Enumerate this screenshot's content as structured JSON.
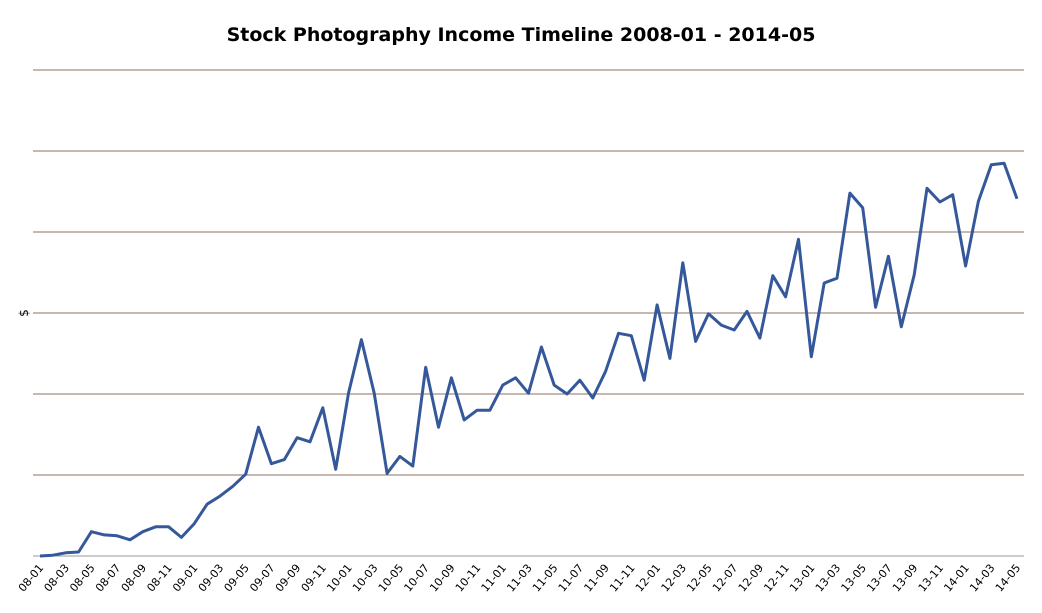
{
  "chart_data": {
    "type": "line",
    "title": "Stock Photography Income Timeline 2008-01 - 2014-05",
    "y_label": "$",
    "categories": [
      "08-01",
      null,
      "08-03",
      null,
      "08-05",
      null,
      "08-07",
      null,
      "08-09",
      null,
      "08-11",
      null,
      "09-01",
      null,
      "09-03",
      null,
      "09-05",
      null,
      "09-07",
      null,
      "09-09",
      null,
      "09-11",
      null,
      "10-01",
      null,
      "10-03",
      null,
      "10-05",
      null,
      "10-07",
      null,
      "10-09",
      null,
      "10-11",
      null,
      "11-01",
      null,
      "11-03",
      null,
      "11-05",
      null,
      "11-07",
      null,
      "11-09",
      null,
      "11-11",
      null,
      "12-01",
      null,
      "12-03",
      null,
      "12-05",
      null,
      "12-07",
      null,
      "12-09",
      null,
      "12-11",
      null,
      "13-01",
      null,
      "13-03",
      null,
      "13-05",
      null,
      "13-07",
      null,
      "13-09",
      null,
      "13-11",
      null,
      "14-01",
      null,
      "14-03",
      null,
      "14-05"
    ],
    "values": [
      0,
      0.01,
      0.04,
      0.05,
      0.3,
      0.26,
      0.25,
      0.2,
      0.3,
      0.36,
      0.36,
      0.23,
      0.4,
      0.64,
      0.74,
      0.86,
      1.01,
      1.59,
      1.14,
      1.19,
      1.46,
      1.41,
      1.83,
      1.07,
      2.01,
      2.67,
      2.01,
      1.02,
      1.23,
      1.11,
      2.33,
      1.59,
      2.2,
      1.68,
      1.8,
      1.8,
      2.11,
      2.2,
      2.01,
      2.58,
      2.11,
      2.0,
      2.17,
      1.95,
      2.28,
      2.75,
      2.72,
      2.17,
      3.1,
      2.44,
      3.62,
      2.65,
      2.99,
      2.85,
      2.79,
      3.02,
      2.69,
      3.46,
      3.2,
      3.91,
      2.46,
      3.37,
      3.43,
      4.48,
      4.3,
      3.07,
      3.7,
      2.83,
      3.47,
      4.54,
      4.37,
      4.46,
      3.58,
      4.38,
      4.83,
      4.85,
      4.41
    ],
    "color": "#35589a",
    "ylim": [
      0,
      6
    ],
    "gridlines": [
      0,
      1,
      2,
      3,
      4,
      5,
      6
    ],
    "grid": true
  }
}
